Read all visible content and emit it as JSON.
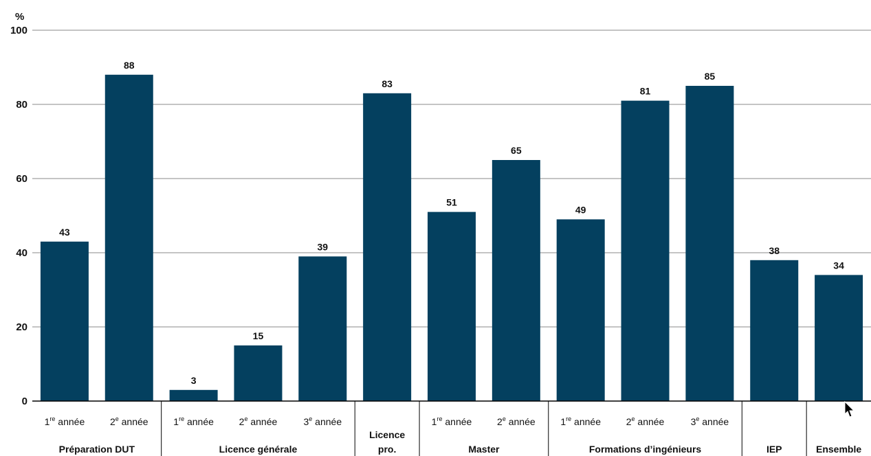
{
  "chart_data": {
    "type": "bar",
    "ylabel": "%",
    "ylim": [
      0,
      100
    ],
    "yticks": [
      "0",
      "20",
      "40",
      "60",
      "80",
      "100"
    ],
    "grid": true,
    "color": "#04405f",
    "bars": [
      {
        "group": "Préparation DUT",
        "sub": "1",
        "sup": "re",
        "rest": " année",
        "value": 43
      },
      {
        "group": "Préparation DUT",
        "sub": "2",
        "sup": "e",
        "rest": " année",
        "value": 88
      },
      {
        "group": "Licence générale",
        "sub": "1",
        "sup": "re",
        "rest": " année",
        "value": 3
      },
      {
        "group": "Licence générale",
        "sub": "2",
        "sup": "e",
        "rest": " année",
        "value": 15
      },
      {
        "group": "Licence générale",
        "sub": "3",
        "sup": "e",
        "rest": " année",
        "value": 39
      },
      {
        "group": "Licence pro.",
        "sub": "",
        "sup": "",
        "rest": "",
        "value": 83
      },
      {
        "group": "Master",
        "sub": "1",
        "sup": "re",
        "rest": " année",
        "value": 51
      },
      {
        "group": "Master",
        "sub": "2",
        "sup": "e",
        "rest": " année",
        "value": 65
      },
      {
        "group": "Formations d’ingénieurs",
        "sub": "1",
        "sup": "re",
        "rest": " année",
        "value": 49
      },
      {
        "group": "Formations d’ingénieurs",
        "sub": "2",
        "sup": "e",
        "rest": " année",
        "value": 81
      },
      {
        "group": "Formations d’ingénieurs",
        "sub": "3",
        "sup": "e",
        "rest": " année",
        "value": 85
      },
      {
        "group": "IEP",
        "sub": "",
        "sup": "",
        "rest": "",
        "value": 38
      },
      {
        "group": "Ensemble",
        "sub": "",
        "sup": "",
        "rest": "",
        "value": 34
      }
    ],
    "groups": [
      {
        "lines": [
          "Préparation DUT"
        ]
      },
      {
        "lines": [
          "Licence générale"
        ]
      },
      {
        "lines": [
          "Licence",
          "pro."
        ]
      },
      {
        "lines": [
          "Master"
        ]
      },
      {
        "lines": [
          "Formations d’ingénieurs"
        ]
      },
      {
        "lines": [
          "IEP"
        ]
      },
      {
        "lines": [
          "Ensemble"
        ]
      }
    ]
  }
}
